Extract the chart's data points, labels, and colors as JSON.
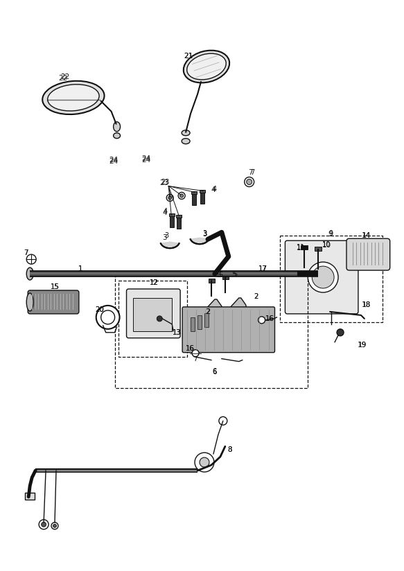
{
  "bg_color": "#ffffff",
  "line_color": "#111111",
  "figsize": [
    5.83,
    8.24
  ],
  "dpi": 100
}
